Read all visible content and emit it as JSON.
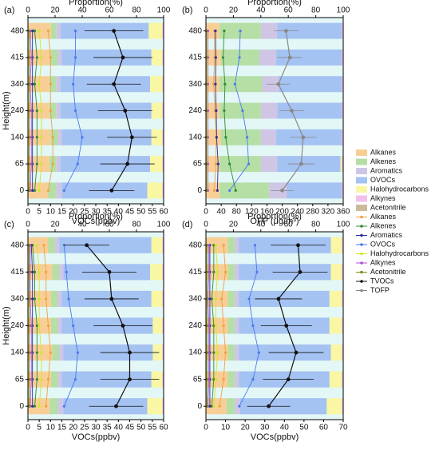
{
  "chart_data": [
    {
      "type": "stacked-bar-line",
      "panel_label": "(a)",
      "top_label": "Proportion(%)",
      "bottom_label": "VOCs(ppbv)",
      "ylabel": "Height(m)",
      "categories": [
        "0",
        "65",
        "140",
        "240",
        "340",
        "415",
        "480"
      ],
      "top_xlim": [
        0,
        100
      ],
      "top_xticks": [
        0,
        20,
        40,
        60,
        80,
        100
      ],
      "xlim": [
        0,
        60
      ],
      "xticks": [
        0,
        5,
        10,
        15,
        20,
        25,
        30,
        35,
        40,
        45,
        50,
        55,
        60
      ],
      "bar_values": [
        [
          15,
          16,
          17,
          16,
          16,
          17,
          17
        ],
        [
          6,
          5,
          5,
          5,
          5,
          5,
          4
        ],
        [
          4,
          3,
          3,
          3,
          3,
          3,
          3
        ],
        [
          63,
          66,
          66,
          67,
          66,
          66,
          65
        ],
        [
          11,
          9,
          8,
          8,
          9,
          8,
          10
        ],
        [
          1,
          1,
          1,
          1,
          1,
          1,
          1
        ],
        [
          0,
          0,
          0,
          0,
          0,
          0,
          0
        ]
      ],
      "line_values": [
        [
          9,
          11,
          11,
          10,
          10,
          10,
          9
        ],
        [
          3,
          4,
          4,
          4,
          3,
          4,
          3
        ],
        [
          2,
          2,
          2,
          2,
          2,
          2,
          2
        ],
        [
          16,
          22,
          24,
          21,
          20,
          21,
          21
        ],
        [
          5,
          6,
          6,
          6,
          5,
          6,
          5
        ],
        [
          1,
          1.5,
          1.5,
          1.5,
          1,
          1.5,
          1
        ],
        [
          0.5,
          0.5,
          0.5,
          0.5,
          0.5,
          0.5,
          0.5
        ],
        [
          37,
          44,
          46,
          43,
          38,
          42,
          38
        ],
        [
          null,
          null,
          null,
          null,
          null,
          null,
          null
        ]
      ],
      "errors": [
        10,
        12,
        11,
        12,
        12,
        13,
        13
      ]
    },
    {
      "type": "stacked-bar-line",
      "panel_label": "(b)",
      "top_label": "Proportion(%)",
      "bottom_label": "OFP (μg/m³)",
      "categories": [
        "0",
        "65",
        "140",
        "240",
        "340",
        "415",
        "480"
      ],
      "top_xlim": [
        0,
        100
      ],
      "top_xticks": [
        0,
        20,
        40,
        60,
        80,
        100
      ],
      "xlim": [
        0,
        360
      ],
      "xticks": [
        0,
        40,
        80,
        120,
        160,
        200,
        240,
        280,
        320,
        360
      ],
      "bar_values": [
        [
          10,
          10,
          11,
          10,
          10,
          11,
          10
        ],
        [
          36,
          30,
          29,
          30,
          31,
          28,
          30
        ],
        [
          13,
          12,
          11,
          12,
          12,
          12,
          12
        ],
        [
          40,
          46,
          48,
          47,
          46,
          48,
          47
        ],
        [
          0,
          1,
          0,
          0,
          0,
          0,
          0
        ],
        [
          1,
          1,
          1,
          1,
          1,
          1,
          1
        ],
        [
          0,
          0,
          0,
          0,
          0,
          0,
          0
        ]
      ],
      "line_values": [
        [
          22,
          26,
          27,
          24,
          20,
          23,
          22
        ],
        [
          78,
          62,
          52,
          48,
          50,
          45,
          48
        ],
        [
          30,
          32,
          28,
          27,
          25,
          26,
          25
        ],
        [
          62,
          112,
          108,
          96,
          76,
          88,
          90
        ],
        [
          2,
          2,
          2,
          2,
          2,
          2,
          2
        ],
        [
          5,
          5,
          5,
          5,
          5,
          5,
          5
        ],
        [
          0.5,
          0.5,
          0.5,
          0.5,
          0.5,
          0.5,
          0.5
        ],
        [
          null,
          null,
          null,
          null,
          null,
          null,
          null
        ],
        [
          200,
          250,
          255,
          225,
          190,
          220,
          210
        ]
      ],
      "errors": [
        30,
        35,
        35,
        32,
        30,
        32,
        32
      ]
    },
    {
      "type": "stacked-bar-line",
      "panel_label": "(c)",
      "top_label": "Proportion(%)",
      "bottom_label": "VOCs(ppbv)",
      "ylabel": "Height(m)",
      "categories": [
        "0",
        "65",
        "140",
        "240",
        "340",
        "415",
        "480"
      ],
      "top_xlim": [
        0,
        100
      ],
      "top_xticks": [
        0,
        20,
        40,
        60,
        80,
        100
      ],
      "xlim": [
        0,
        60
      ],
      "xticks": [
        0,
        5,
        10,
        15,
        20,
        25,
        30,
        35,
        40,
        45,
        50,
        55,
        60
      ],
      "bar_values": [
        [
          16,
          17,
          18,
          17,
          17,
          18,
          15
        ],
        [
          6,
          5,
          5,
          5,
          5,
          5,
          5
        ],
        [
          4,
          3,
          3,
          3,
          3,
          3,
          3
        ],
        [
          62,
          66,
          66,
          67,
          66,
          64,
          68
        ],
        [
          11,
          8,
          7,
          7,
          8,
          9,
          8
        ],
        [
          1,
          1,
          1,
          1,
          1,
          1,
          1
        ],
        [
          0,
          0,
          0,
          0,
          0,
          0,
          0
        ]
      ],
      "line_values": [
        [
          8,
          9,
          10,
          9,
          8,
          8,
          7
        ],
        [
          3,
          4,
          4,
          4,
          3,
          3,
          2
        ],
        [
          2,
          2,
          2,
          2,
          2,
          2,
          1.5
        ],
        [
          16,
          21,
          22,
          20,
          18,
          17,
          16
        ],
        [
          5,
          6,
          6,
          5,
          5,
          5,
          4
        ],
        [
          1,
          1.5,
          1.5,
          1.5,
          1,
          1,
          1
        ],
        [
          0.5,
          0.5,
          0.5,
          0.5,
          0.5,
          0.5,
          0.5
        ],
        [
          39,
          45,
          45,
          42,
          37,
          36,
          26
        ],
        [
          null,
          null,
          null,
          null,
          null,
          null,
          null
        ]
      ],
      "errors": [
        12,
        13,
        13,
        13,
        12,
        12,
        10
      ]
    },
    {
      "type": "stacked-bar-line",
      "panel_label": "(d)",
      "top_label": "Proportion(%)",
      "bottom_label": "VOCs(ppbv)",
      "categories": [
        "0",
        "65",
        "140",
        "240",
        "340",
        "415",
        "480"
      ],
      "top_xlim": [
        0,
        100
      ],
      "top_xticks": [
        0,
        20,
        40,
        60,
        80,
        100
      ],
      "xlim": [
        0,
        70
      ],
      "xticks": [
        0,
        10,
        20,
        30,
        40,
        50,
        60,
        70
      ],
      "bar_values": [
        [
          15,
          16,
          16,
          16,
          16,
          16,
          16
        ],
        [
          6,
          5,
          5,
          5,
          5,
          5,
          5
        ],
        [
          4,
          3,
          3,
          3,
          3,
          3,
          3
        ],
        [
          63,
          66,
          67,
          66,
          66,
          67,
          67
        ],
        [
          11,
          9,
          8,
          9,
          9,
          8,
          8
        ],
        [
          1,
          1,
          1,
          1,
          1,
          1,
          1
        ],
        [
          0,
          0,
          0,
          0,
          0,
          0,
          0
        ]
      ],
      "line_values": [
        [
          7,
          9,
          10,
          9,
          8,
          10,
          9
        ],
        [
          3,
          4,
          4,
          4,
          3,
          4,
          4
        ],
        [
          2,
          2,
          2,
          2,
          2,
          2,
          2
        ],
        [
          17,
          24,
          27,
          24,
          22,
          26,
          25
        ],
        [
          4,
          5,
          6,
          5,
          5,
          6,
          5
        ],
        [
          1,
          1.5,
          1.5,
          1.5,
          1,
          1.5,
          1.5
        ],
        [
          0.5,
          0.5,
          0.5,
          0.5,
          0.5,
          0.5,
          0.5
        ],
        [
          32,
          42,
          46,
          41,
          37,
          48,
          47
        ],
        [
          null,
          null,
          null,
          null,
          null,
          null,
          null
        ]
      ],
      "errors": [
        11,
        13,
        14,
        13,
        12,
        14,
        14
      ]
    }
  ],
  "legend": {
    "bar_series": [
      {
        "name": "Alkanes",
        "color": "#f7cf96"
      },
      {
        "name": "Alkenes",
        "color": "#b5dfa5"
      },
      {
        "name": "Aromatics",
        "color": "#cfc6e6"
      },
      {
        "name": "OVOCs",
        "color": "#a4c2f2"
      },
      {
        "name": "Halohydrocarbons",
        "color": "#f9f7a3"
      },
      {
        "name": "Alkynes",
        "color": "#f2bfe9"
      },
      {
        "name": "Acetonitrile",
        "color": "#c9bb9b"
      }
    ],
    "line_series": [
      {
        "name": "Alkanes",
        "color": "#f0a040"
      },
      {
        "name": "Alkenes",
        "color": "#2e8b2e"
      },
      {
        "name": "Aromatics",
        "color": "#2c2ca0"
      },
      {
        "name": "OVOCs",
        "color": "#4a78f0"
      },
      {
        "name": "Halohydrocarbons",
        "color": "#d4e42a"
      },
      {
        "name": "Alkynes",
        "color": "#b050d0"
      },
      {
        "name": "Acetonitrile",
        "color": "#7a8a1a"
      },
      {
        "name": "TVOCs",
        "color": "#111111"
      },
      {
        "name": "TOFP",
        "color": "#888888"
      }
    ]
  }
}
